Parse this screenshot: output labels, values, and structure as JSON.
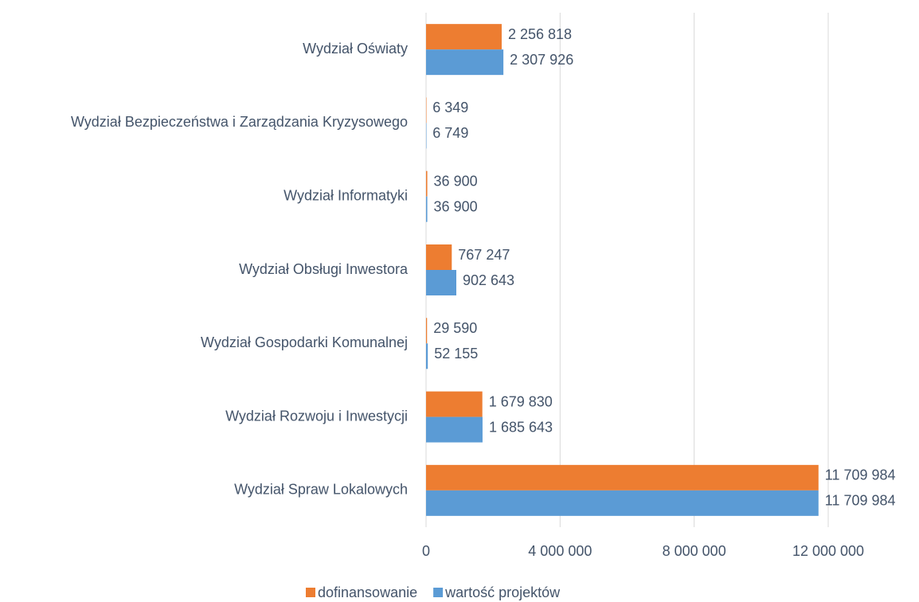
{
  "chart_data": {
    "type": "bar",
    "orientation": "horizontal",
    "categories": [
      "Wydział Oświaty",
      "Wydział Bezpieczeństwa i Zarządzania Kryzysowego",
      "Wydział Informatyki",
      "Wydział Obsługi Inwestora",
      "Wydział Gospodarki Komunalnej",
      "Wydział Rozwoju i Inwestycji",
      "Wydział Spraw Lokalowych"
    ],
    "series": [
      {
        "name": "dofinansowanie",
        "color": "#ed7d31",
        "values": [
          2256818,
          6349,
          36900,
          767247,
          29590,
          1679830,
          11709984
        ],
        "value_labels": [
          "2 256 818",
          "6 349",
          "36 900",
          "767 247",
          "29 590",
          "1 679 830",
          "11 709 984"
        ]
      },
      {
        "name": "wartość projektów",
        "color": "#5b9bd5",
        "values": [
          2307926,
          6749,
          36900,
          902643,
          52155,
          1685643,
          11709984
        ],
        "value_labels": [
          "2 307 926",
          "6 749",
          "36 900",
          "902 643",
          "52 155",
          "1 685 643",
          "11 709 984"
        ]
      }
    ],
    "xlim": [
      0,
      12000000
    ],
    "xticks": [
      0,
      {
        "value": 4000000,
        "label": "4 000 000"
      },
      {
        "value": 8000000,
        "label": "8 000 000"
      },
      {
        "value": 12000000,
        "label": "12 000 000"
      }
    ],
    "grid": true,
    "legend": "bottom"
  }
}
